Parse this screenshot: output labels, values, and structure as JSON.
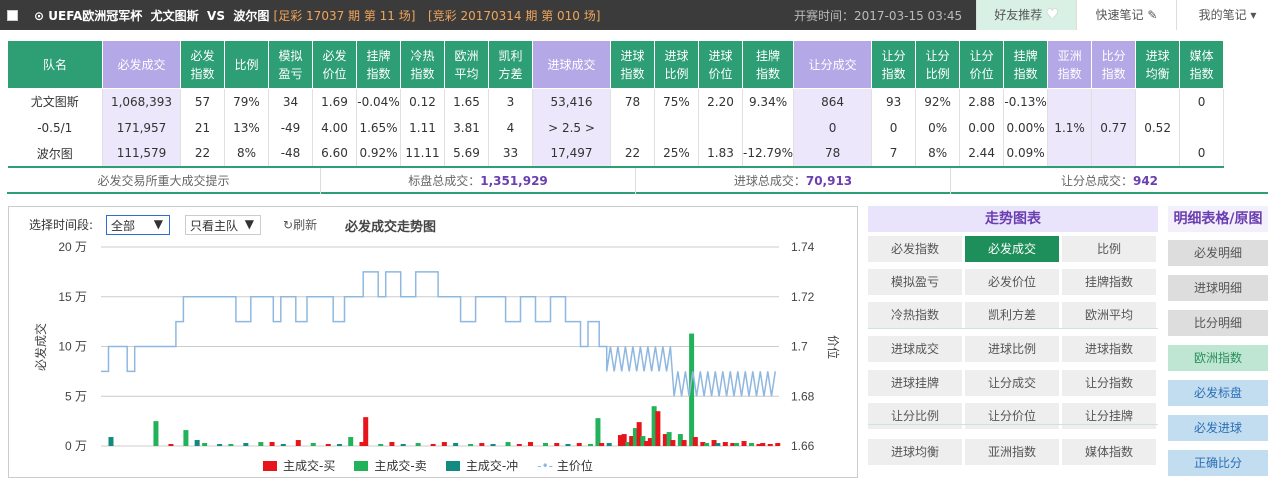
{
  "header": {
    "league": "UEFA欧洲冠军杯",
    "home": "尤文图斯",
    "vs": "VS",
    "away": "波尔图",
    "zucai": "[足彩 17037 期 第 11 场]",
    "jingcai": "[竞彩 20170314 期 第 010 场]",
    "open_time": "开赛时间：2017-03-15 03:45",
    "buttons": [
      "好友推荐",
      "快速笔记",
      "我的笔记"
    ]
  },
  "table": {
    "headers": [
      "队名",
      "必发成交",
      "必发\n指数",
      "比例",
      "模拟\n盈亏",
      "必发\n价位",
      "挂牌\n指数",
      "冷热\n指数",
      "欧洲\n平均",
      "凯利\n方差",
      "进球成交",
      "进球\n指数",
      "进球\n比例",
      "进球\n价位",
      "挂牌\n指数",
      "让分成交",
      "让分\n指数",
      "让分\n比例",
      "让分\n价位",
      "挂牌\n指数",
      "亚洲\n指数",
      "比分\n指数",
      "进球\n均衡",
      "媒体\n指数"
    ],
    "rows": [
      [
        "尤文图斯",
        "1,068,393",
        "57",
        "79%",
        "34",
        "1.69",
        "-0.04%",
        "0.12",
        "1.65",
        "3",
        "53,416",
        "78",
        "75%",
        "2.20",
        "9.34%",
        "864",
        "93",
        "92%",
        "2.88",
        "-0.13%",
        "",
        "",
        "",
        "0"
      ],
      [
        "-0.5/1",
        "171,957",
        "21",
        "13%",
        "-49",
        "4.00",
        "1.65%",
        "1.11",
        "3.81",
        "4",
        "> 2.5 >",
        "",
        "",
        "",
        "",
        "0",
        "0",
        "0%",
        "0.00",
        "0.00%",
        "1.1%",
        "0.77",
        "0.52",
        ""
      ],
      [
        "波尔图",
        "111,579",
        "22",
        "8%",
        "-48",
        "6.60",
        "0.92%",
        "11.11",
        "5.69",
        "33",
        "17,497",
        "22",
        "25%",
        "1.83",
        "-12.79%",
        "78",
        "7",
        "8%",
        "2.44",
        "0.09%",
        "",
        "",
        "",
        "0"
      ]
    ]
  },
  "summary": {
    "hint": "必发交易所重大成交提示",
    "total_label": "标盘总成交：",
    "total": "1,351,929",
    "goal_label": "进球总成交：",
    "goal": "70,913",
    "hc_label": "让分总成交：",
    "hc": "942"
  },
  "chart_controls": {
    "period_label": "选择时间段:",
    "period_value": "全部",
    "team_value": "只看主队",
    "refresh": "刷新",
    "title": "必发成交走势图"
  },
  "chart_data": {
    "type": "bar+line",
    "title": "必发成交走势图",
    "ylabel_left": "必发成交",
    "ylabel_right": "价位",
    "left_ticks": [
      "20 万",
      "15 万",
      "10 万",
      "5 万",
      "0 万"
    ],
    "right_ticks": [
      "1.74",
      "1.72",
      "1.7",
      "1.68",
      "1.66"
    ],
    "ylim_left": [
      0,
      200000
    ],
    "ylim_right": [
      1.66,
      1.74
    ],
    "series": [
      {
        "name": "主成交-买",
        "color": "#e8141b"
      },
      {
        "name": "主成交-卖",
        "color": "#22b35a"
      },
      {
        "name": "主成交-冲",
        "color": "#138a80"
      },
      {
        "name": "主价位",
        "color": "#8fb8e0"
      }
    ],
    "bars": [
      [
        2,
        2,
        9000
      ],
      [
        14,
        1,
        25000
      ],
      [
        18,
        0,
        2000
      ],
      [
        22,
        1,
        16000
      ],
      [
        25,
        2,
        6000
      ],
      [
        27,
        1,
        3000
      ],
      [
        31,
        2,
        2000
      ],
      [
        34,
        1,
        2000
      ],
      [
        38,
        2,
        3000
      ],
      [
        42,
        1,
        4000
      ],
      [
        45,
        0,
        4000
      ],
      [
        48,
        2,
        2000
      ],
      [
        52,
        0,
        6000
      ],
      [
        56,
        1,
        3000
      ],
      [
        60,
        0,
        2000
      ],
      [
        63,
        2,
        2000
      ],
      [
        66,
        1,
        9000
      ],
      [
        69,
        0,
        4000
      ],
      [
        70,
        0,
        29000
      ],
      [
        74,
        1,
        2000
      ],
      [
        77,
        0,
        4000
      ],
      [
        80,
        2,
        2000
      ],
      [
        84,
        1,
        3000
      ],
      [
        88,
        0,
        2000
      ],
      [
        91,
        0,
        4000
      ],
      [
        94,
        2,
        3000
      ],
      [
        98,
        1,
        2000
      ],
      [
        101,
        0,
        3000
      ],
      [
        104,
        2,
        2000
      ],
      [
        108,
        1,
        4000
      ],
      [
        111,
        0,
        2000
      ],
      [
        114,
        0,
        4000
      ],
      [
        118,
        1,
        3000
      ],
      [
        121,
        0,
        3000
      ],
      [
        124,
        2,
        2000
      ],
      [
        127,
        0,
        3000
      ],
      [
        130,
        1,
        2000
      ],
      [
        132,
        1,
        28000
      ],
      [
        133,
        0,
        3000
      ],
      [
        135,
        2,
        3000
      ],
      [
        138,
        0,
        11000
      ],
      [
        139,
        0,
        12000
      ],
      [
        140,
        1,
        4000
      ],
      [
        141,
        0,
        10000
      ],
      [
        142,
        1,
        18000
      ],
      [
        143,
        0,
        24000
      ],
      [
        144,
        1,
        10000
      ],
      [
        145,
        0,
        5000
      ],
      [
        146,
        0,
        8000
      ],
      [
        147,
        1,
        40000
      ],
      [
        148,
        0,
        35000
      ],
      [
        150,
        0,
        12000
      ],
      [
        151,
        1,
        14000
      ],
      [
        152,
        0,
        6000
      ],
      [
        154,
        1,
        12000
      ],
      [
        155,
        0,
        6000
      ],
      [
        157,
        1,
        113000
      ],
      [
        158,
        0,
        9000
      ],
      [
        160,
        0,
        4000
      ],
      [
        161,
        1,
        3000
      ],
      [
        163,
        0,
        6000
      ],
      [
        164,
        2,
        3000
      ],
      [
        166,
        0,
        4000
      ],
      [
        168,
        0,
        3000
      ],
      [
        169,
        1,
        3000
      ],
      [
        171,
        0,
        5000
      ],
      [
        173,
        1,
        3000
      ],
      [
        175,
        0,
        2000
      ],
      [
        176,
        0,
        3000
      ],
      [
        178,
        0,
        2000
      ],
      [
        180,
        0,
        3000
      ]
    ],
    "price": [
      [
        0,
        1.69
      ],
      [
        2,
        1.69
      ],
      [
        2,
        1.7
      ],
      [
        7,
        1.7
      ],
      [
        7,
        1.69
      ],
      [
        9,
        1.69
      ],
      [
        9,
        1.7
      ],
      [
        14,
        1.7
      ],
      [
        14,
        1.7
      ],
      [
        20,
        1.7
      ],
      [
        20,
        1.71
      ],
      [
        22,
        1.71
      ],
      [
        22,
        1.72
      ],
      [
        36,
        1.72
      ],
      [
        36,
        1.71
      ],
      [
        40,
        1.71
      ],
      [
        40,
        1.72
      ],
      [
        46,
        1.72
      ],
      [
        46,
        1.71
      ],
      [
        48,
        1.71
      ],
      [
        48,
        1.72
      ],
      [
        52,
        1.72
      ],
      [
        52,
        1.71
      ],
      [
        55,
        1.71
      ],
      [
        55,
        1.72
      ],
      [
        62,
        1.72
      ],
      [
        62,
        1.71
      ],
      [
        65,
        1.71
      ],
      [
        65,
        1.72
      ],
      [
        70,
        1.72
      ],
      [
        70,
        1.73
      ],
      [
        74,
        1.73
      ],
      [
        74,
        1.72
      ],
      [
        76,
        1.72
      ],
      [
        76,
        1.73
      ],
      [
        80,
        1.73
      ],
      [
        80,
        1.72
      ],
      [
        84,
        1.72
      ],
      [
        84,
        1.73
      ],
      [
        90,
        1.73
      ],
      [
        90,
        1.72
      ],
      [
        96,
        1.72
      ],
      [
        96,
        1.71
      ],
      [
        100,
        1.71
      ],
      [
        100,
        1.72
      ],
      [
        108,
        1.72
      ],
      [
        108,
        1.71
      ],
      [
        112,
        1.71
      ],
      [
        112,
        1.72
      ],
      [
        116,
        1.72
      ],
      [
        116,
        1.71
      ],
      [
        120,
        1.71
      ],
      [
        120,
        1.72
      ],
      [
        124,
        1.72
      ],
      [
        124,
        1.71
      ],
      [
        128,
        1.71
      ],
      [
        128,
        1.7
      ],
      [
        130,
        1.7
      ],
      [
        130,
        1.71
      ],
      [
        133,
        1.71
      ],
      [
        133,
        1.7
      ],
      [
        135,
        1.7
      ],
      [
        135,
        1.69
      ],
      [
        136,
        1.7
      ],
      [
        137,
        1.69
      ],
      [
        138,
        1.7
      ],
      [
        139,
        1.69
      ],
      [
        140,
        1.7
      ],
      [
        141,
        1.69
      ],
      [
        142,
        1.7
      ],
      [
        143,
        1.69
      ],
      [
        144,
        1.7
      ],
      [
        145,
        1.69
      ],
      [
        146,
        1.7
      ],
      [
        147,
        1.69
      ],
      [
        148,
        1.7
      ],
      [
        149,
        1.69
      ],
      [
        150,
        1.7
      ],
      [
        151,
        1.69
      ],
      [
        152,
        1.7
      ],
      [
        153,
        1.68
      ],
      [
        154,
        1.69
      ],
      [
        155,
        1.68
      ],
      [
        156,
        1.69
      ],
      [
        157,
        1.68
      ],
      [
        158,
        1.69
      ],
      [
        159,
        1.68
      ],
      [
        160,
        1.69
      ],
      [
        161,
        1.68
      ],
      [
        162,
        1.69
      ],
      [
        163,
        1.68
      ],
      [
        164,
        1.69
      ],
      [
        165,
        1.68
      ],
      [
        166,
        1.69
      ],
      [
        167,
        1.68
      ],
      [
        168,
        1.69
      ],
      [
        169,
        1.68
      ],
      [
        170,
        1.69
      ],
      [
        171,
        1.68
      ],
      [
        172,
        1.69
      ],
      [
        173,
        1.68
      ],
      [
        174,
        1.69
      ],
      [
        175,
        1.68
      ],
      [
        176,
        1.69
      ],
      [
        177,
        1.68
      ],
      [
        178,
        1.69
      ],
      [
        179,
        1.68
      ],
      [
        180,
        1.69
      ]
    ]
  },
  "right_panel": {
    "title": "走势图表",
    "buttons": [
      "必发指数",
      "必发成交",
      "比例",
      "模拟盈亏",
      "必发价位",
      "挂牌指数",
      "冷热指数",
      "凯利方差",
      "欧洲平均",
      "进球成交",
      "进球比例",
      "进球指数",
      "进球挂牌",
      "让分成交",
      "让分指数",
      "让分比例",
      "让分价位",
      "让分挂牌",
      "进球均衡",
      "亚洲指数",
      "媒体指数"
    ]
  },
  "far_panel": {
    "title": "明细表格/原图",
    "buttons": [
      "必发明细",
      "进球明细",
      "比分明细",
      "欧洲指数",
      "必发标盘",
      "必发进球",
      "正确比分"
    ]
  }
}
